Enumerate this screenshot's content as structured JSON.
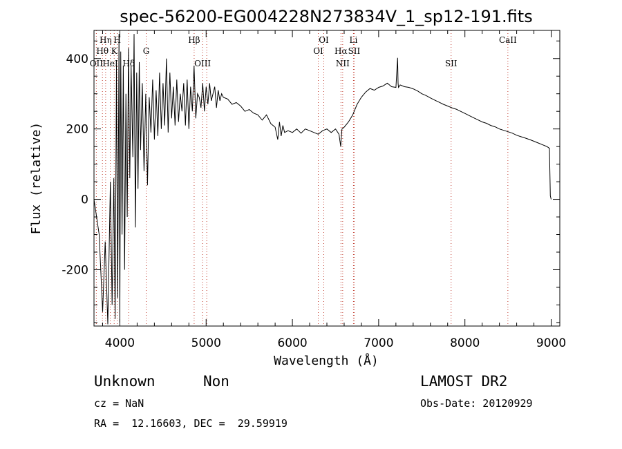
{
  "chart_data": {
    "type": "line",
    "title": "spec-56200-EG004228N273834V_1_sp12-191.fits",
    "xlabel": "Wavelength (Å)",
    "ylabel": "Flux (relative)",
    "xlim": [
      3700,
      9100
    ],
    "ylim": [
      -360,
      480
    ],
    "x_ticks": [
      "4000",
      "5000",
      "6000",
      "7000",
      "8000",
      "9000"
    ],
    "y_ticks": [
      "-200",
      "0",
      "200",
      "400"
    ],
    "x_tick_values": [
      4000,
      5000,
      6000,
      7000,
      8000,
      9000
    ],
    "y_tick_values": [
      -200,
      0,
      200,
      400
    ],
    "series": [
      {
        "x": [
          3700,
          3760,
          3800,
          3830,
          3860,
          3890,
          3910,
          3930,
          3945,
          3960,
          3975,
          3990,
          4000,
          4010,
          4025,
          4040,
          4055,
          4070,
          4085,
          4100,
          4115,
          4130,
          4150,
          4165,
          4180,
          4195,
          4210,
          4225,
          4240,
          4260,
          4280,
          4300,
          4320,
          4340,
          4360,
          4380,
          4400,
          4420,
          4440,
          4460,
          4480,
          4500,
          4520,
          4540,
          4560,
          4580,
          4600,
          4620,
          4640,
          4660,
          4680,
          4700,
          4720,
          4740,
          4760,
          4780,
          4800,
          4820,
          4840,
          4860,
          4880,
          4900,
          4920,
          4940,
          4960,
          4980,
          5000,
          5020,
          5040,
          5060,
          5080,
          5100,
          5120,
          5140,
          5160,
          5180,
          5200,
          5250,
          5300,
          5350,
          5400,
          5450,
          5500,
          5550,
          5600,
          5650,
          5700,
          5750,
          5800,
          5830,
          5850,
          5870,
          5890,
          5910,
          5950,
          6000,
          6050,
          6100,
          6150,
          6200,
          6250,
          6300,
          6350,
          6400,
          6450,
          6500,
          6540,
          6560,
          6563,
          6575,
          6600,
          6650,
          6700,
          6750,
          6800,
          6850,
          6900,
          6950,
          7000,
          7050,
          7100,
          7150,
          7200,
          7220,
          7225,
          7230,
          7250,
          7300,
          7350,
          7400,
          7450,
          7500,
          7550,
          7600,
          7650,
          7700,
          7750,
          7800,
          7850,
          7900,
          7950,
          8000,
          8050,
          8100,
          8150,
          8200,
          8250,
          8300,
          8350,
          8400,
          8450,
          8500,
          8550,
          8600,
          8650,
          8700,
          8750,
          8800,
          8850,
          8900,
          8950,
          8980,
          8990,
          9000
        ],
        "y": [
          0,
          -100,
          -320,
          -120,
          -355,
          50,
          -300,
          60,
          -340,
          380,
          -280,
          470,
          -350,
          420,
          -100,
          380,
          -200,
          300,
          -50,
          430,
          60,
          380,
          120,
          470,
          -80,
          360,
          30,
          390,
          140,
          330,
          80,
          300,
          40,
          290,
          190,
          340,
          170,
          310,
          180,
          360,
          200,
          330,
          210,
          400,
          190,
          360,
          230,
          320,
          210,
          340,
          220,
          300,
          250,
          330,
          210,
          340,
          200,
          320,
          250,
          380,
          230,
          300,
          290,
          260,
          330,
          250,
          320,
          270,
          330,
          280,
          300,
          320,
          260,
          310,
          280,
          300,
          290,
          285,
          270,
          275,
          265,
          250,
          255,
          245,
          240,
          225,
          240,
          215,
          205,
          170,
          220,
          180,
          210,
          190,
          195,
          190,
          200,
          188,
          200,
          195,
          190,
          185,
          195,
          200,
          190,
          200,
          185,
          150,
          160,
          200,
          205,
          220,
          240,
          270,
          290,
          305,
          315,
          310,
          318,
          322,
          330,
          320,
          318,
          402,
          330,
          318,
          325,
          320,
          318,
          314,
          308,
          300,
          295,
          288,
          282,
          276,
          270,
          265,
          260,
          256,
          250,
          244,
          238,
          232,
          226,
          220,
          216,
          210,
          206,
          200,
          196,
          192,
          188,
          182,
          178,
          174,
          170,
          165,
          160,
          155,
          150,
          145,
          10,
          0
        ]
      }
    ],
    "grid": false,
    "line_markers": [
      {
        "label": "Hη",
        "x": 3835,
        "row": 0
      },
      {
        "label": "H",
        "x": 3970,
        "row": 0
      },
      {
        "label": "Hθ",
        "x": 3798,
        "row": 1
      },
      {
        "label": "K",
        "x": 3934,
        "row": 1
      },
      {
        "label": "G",
        "x": 4305,
        "row": 1
      },
      {
        "label": "OII",
        "x": 3727,
        "row": 2
      },
      {
        "label": "HeI",
        "x": 3889,
        "row": 2
      },
      {
        "label": "Hδ",
        "x": 4102,
        "row": 2
      },
      {
        "label": "Hβ",
        "x": 4861,
        "row": 0
      },
      {
        "label": "OIII",
        "x": 4959,
        "row": 2
      },
      {
        "label": "OIII",
        "x": 5007,
        "row": -1
      },
      {
        "label": "OI",
        "x": 6364,
        "row": 0
      },
      {
        "label": "OI",
        "x": 6300,
        "row": 1
      },
      {
        "label": "Hα",
        "x": 6563,
        "row": 1
      },
      {
        "label": "NII",
        "x": 6583,
        "row": 2
      },
      {
        "label": "Li",
        "x": 6708,
        "row": 0
      },
      {
        "label": "SII",
        "x": 6716,
        "row": 1
      },
      {
        "label": "SII",
        "x": 7840,
        "row": 2
      },
      {
        "label": "CaII",
        "x": 8498,
        "row": 0
      }
    ],
    "colors": {
      "line": "#000000",
      "marker": "#c0392b"
    }
  },
  "footer": {
    "class_text": "Unknown",
    "subclass_text": "Non",
    "survey": "LAMOST DR2",
    "cz": "cz = NaN",
    "obs_date": "Obs-Date: 20120929",
    "radec": "RA =  12.16603, DEC =  29.59919"
  }
}
